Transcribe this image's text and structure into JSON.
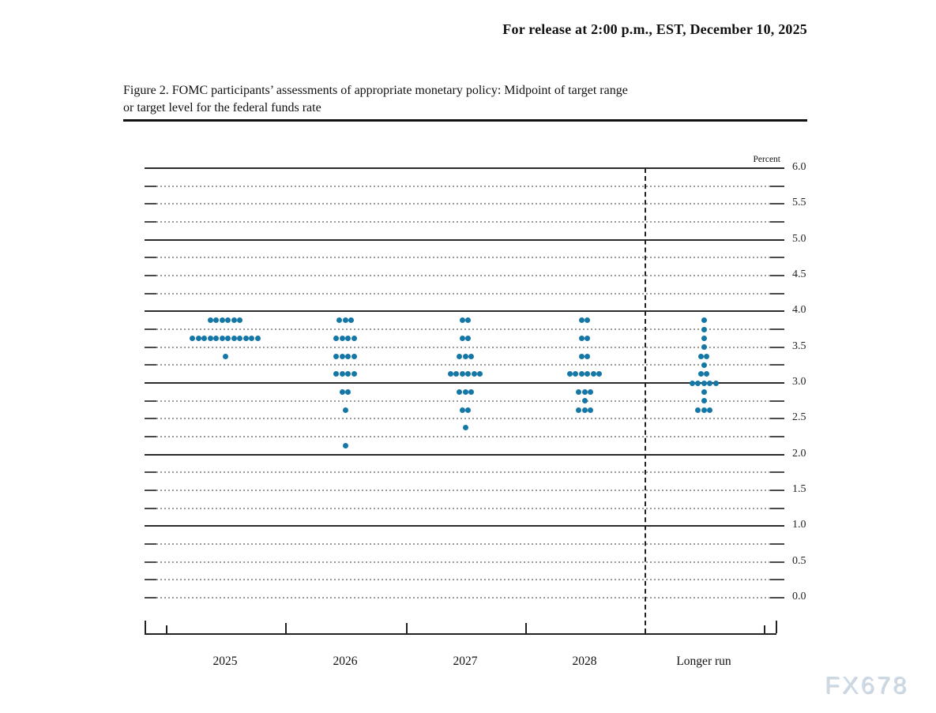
{
  "page": {
    "release_line": "For release at 2:00 p.m., EST, December 10, 2025",
    "watermark": "FX678"
  },
  "figure": {
    "title_line1": "Figure 2. FOMC participants’ assessments of appropriate monetary policy: Midpoint of target range",
    "title_line2": "or target level for the federal funds rate"
  },
  "chart_data": {
    "type": "scatter",
    "subtype": "fomc-dot-plot",
    "title": "Figure 2. FOMC participants’ assessments of appropriate monetary policy: Midpoint of target range or target level for the federal funds rate",
    "ylabel": "Percent",
    "ylim": [
      0.0,
      6.0
    ],
    "ytick_labels": [
      "6.0",
      "5.5",
      "5.0",
      "4.5",
      "4.0",
      "3.5",
      "3.0",
      "2.5",
      "2.0",
      "1.5",
      "1.0",
      "0.5",
      "0.0"
    ],
    "solid_gridlines": [
      6.0,
      5.0,
      4.0,
      3.0,
      2.0,
      1.0
    ],
    "minor_gridline_step": 0.25,
    "grid": true,
    "legend": "none",
    "dot_color": "#1577a5",
    "categories": [
      "2025",
      "2026",
      "2027",
      "2028",
      "Longer run"
    ],
    "separator_before_category": "Longer run",
    "series": [
      {
        "category": "2025",
        "dots": [
          {
            "rate": 3.875,
            "count": 6
          },
          {
            "rate": 3.625,
            "count": 12
          },
          {
            "rate": 3.375,
            "count": 1
          }
        ]
      },
      {
        "category": "2026",
        "dots": [
          {
            "rate": 3.875,
            "count": 3
          },
          {
            "rate": 3.625,
            "count": 4
          },
          {
            "rate": 3.375,
            "count": 4
          },
          {
            "rate": 3.125,
            "count": 4
          },
          {
            "rate": 2.875,
            "count": 2
          },
          {
            "rate": 2.625,
            "count": 1
          },
          {
            "rate": 2.125,
            "count": 1
          }
        ]
      },
      {
        "category": "2027",
        "dots": [
          {
            "rate": 3.875,
            "count": 2
          },
          {
            "rate": 3.625,
            "count": 2
          },
          {
            "rate": 3.375,
            "count": 3
          },
          {
            "rate": 3.125,
            "count": 6
          },
          {
            "rate": 2.875,
            "count": 3
          },
          {
            "rate": 2.625,
            "count": 2
          },
          {
            "rate": 2.375,
            "count": 1
          }
        ]
      },
      {
        "category": "2028",
        "dots": [
          {
            "rate": 3.875,
            "count": 2
          },
          {
            "rate": 3.625,
            "count": 2
          },
          {
            "rate": 3.375,
            "count": 2
          },
          {
            "rate": 3.125,
            "count": 6
          },
          {
            "rate": 2.875,
            "count": 3
          },
          {
            "rate": 2.75,
            "count": 1
          },
          {
            "rate": 2.625,
            "count": 3
          }
        ]
      },
      {
        "category": "Longer run",
        "dots": [
          {
            "rate": 3.875,
            "count": 1
          },
          {
            "rate": 3.75,
            "count": 1
          },
          {
            "rate": 3.625,
            "count": 1
          },
          {
            "rate": 3.5,
            "count": 1
          },
          {
            "rate": 3.375,
            "count": 2
          },
          {
            "rate": 3.25,
            "count": 1
          },
          {
            "rate": 3.125,
            "count": 2
          },
          {
            "rate": 3.0,
            "count": 5
          },
          {
            "rate": 2.875,
            "count": 1
          },
          {
            "rate": 2.75,
            "count": 1
          },
          {
            "rate": 2.625,
            "count": 3
          }
        ]
      }
    ]
  }
}
